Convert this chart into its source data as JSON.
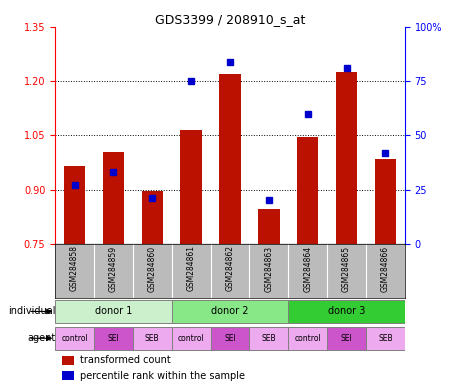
{
  "title": "GDS3399 / 208910_s_at",
  "samples": [
    "GSM284858",
    "GSM284859",
    "GSM284860",
    "GSM284861",
    "GSM284862",
    "GSM284863",
    "GSM284864",
    "GSM284865",
    "GSM284866"
  ],
  "transformed_count": [
    0.965,
    1.005,
    0.895,
    1.065,
    1.22,
    0.845,
    1.045,
    1.225,
    0.985
  ],
  "percentile_rank": [
    27,
    33,
    21,
    75,
    84,
    20,
    60,
    81,
    42
  ],
  "ylim_left": [
    0.75,
    1.35
  ],
  "ylim_right": [
    0,
    100
  ],
  "yticks_left": [
    0.75,
    0.9,
    1.05,
    1.2,
    1.35
  ],
  "yticks_right": [
    0,
    25,
    50,
    75,
    100
  ],
  "ytick_labels_right": [
    "0",
    "25",
    "50",
    "75",
    "100%"
  ],
  "donors": [
    {
      "label": "donor 1",
      "cols": [
        0,
        1,
        2
      ],
      "color": "#ccf0cc"
    },
    {
      "label": "donor 2",
      "cols": [
        3,
        4,
        5
      ],
      "color": "#88e888"
    },
    {
      "label": "donor 3",
      "cols": [
        6,
        7,
        8
      ],
      "color": "#33cc33"
    }
  ],
  "agents": [
    "control",
    "SEI",
    "SEB",
    "control",
    "SEI",
    "SEB",
    "control",
    "SEI",
    "SEB"
  ],
  "agent_color_map": {
    "control": "#eeaaee",
    "SEI": "#cc55cc",
    "SEB": "#eeaaee"
  },
  "bar_color": "#bb1100",
  "dot_color": "#0000cc",
  "bar_width": 0.55,
  "background_color": "#ffffff",
  "xticklabel_bg": "#bbbbbb",
  "grid_yticks": [
    0.9,
    1.05,
    1.2
  ]
}
